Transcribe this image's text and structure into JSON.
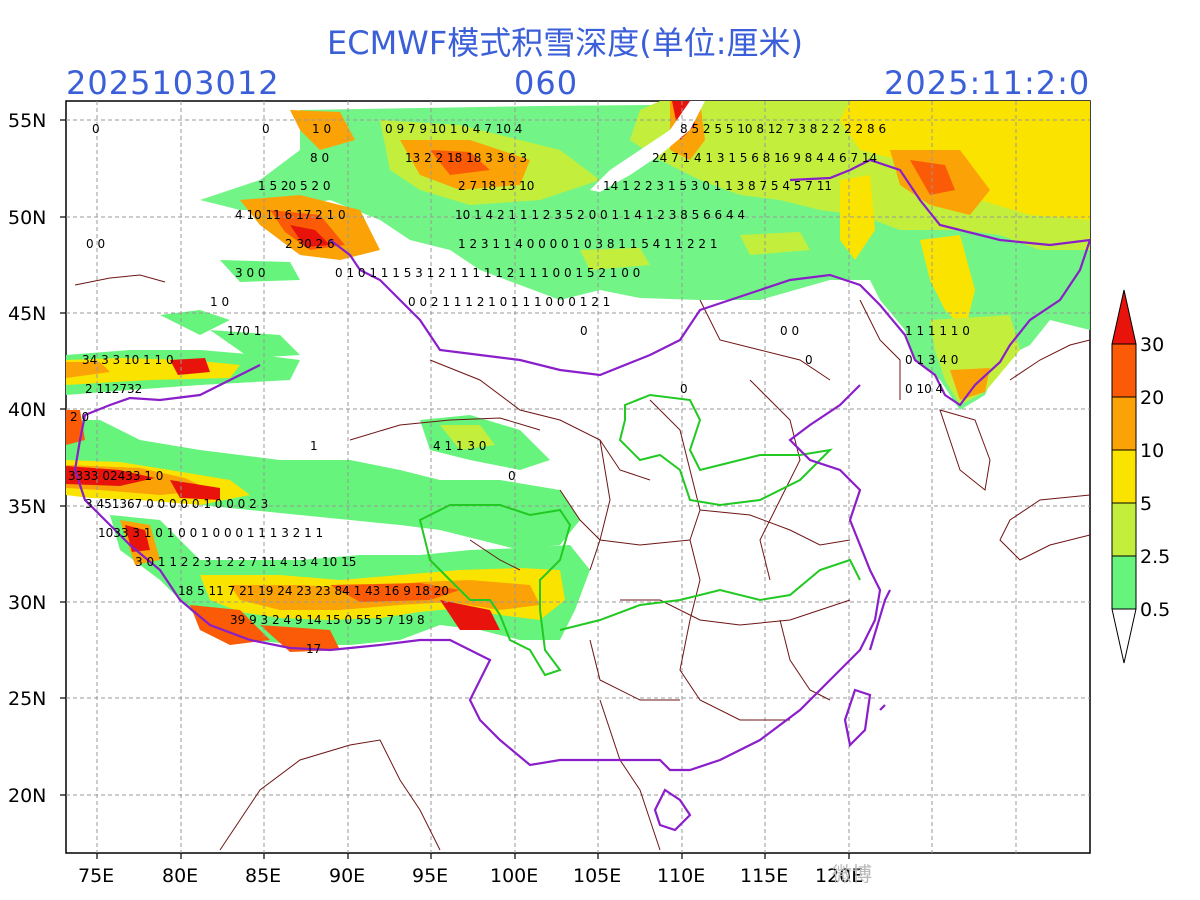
{
  "title": "ECMWF模式积雪深度(单位:厘米)",
  "header": {
    "init_time": "2025103012",
    "forecast_hour": "060",
    "valid_time": "2025:11:2:0"
  },
  "axes": {
    "lon_labels": [
      "75E",
      "80E",
      "85E",
      "90E",
      "95E",
      "100E",
      "105E",
      "110E",
      "115E",
      "120E"
    ],
    "lat_labels": [
      "55N",
      "50N",
      "45N",
      "40N",
      "35N",
      "30N",
      "25N",
      "20N"
    ],
    "lon_range": [
      73,
      135
    ],
    "lat_range": [
      17,
      56
    ]
  },
  "colorbar": {
    "labels": [
      "30",
      "20",
      "10",
      "5",
      "2.5",
      "0.5"
    ],
    "colors": [
      "#e8140c",
      "#fb5b06",
      "#fba306",
      "#fbe300",
      "#c3ef3c",
      "#66f47c",
      "#ffffff"
    ]
  },
  "colors": {
    "title": "#3a5fd8",
    "china_border": "#8a1fc9",
    "province_border": "#6e1515",
    "basin_border": "#22c922",
    "grid": "#999999"
  },
  "watermark": "微博"
}
